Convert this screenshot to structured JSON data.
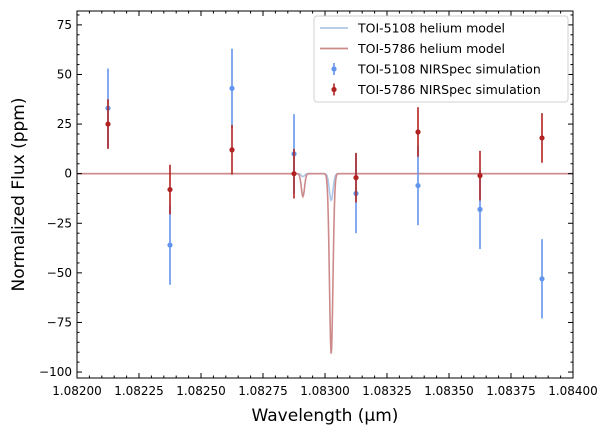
{
  "chart_data": {
    "type": "line",
    "title": "",
    "xlabel": "Wavelength (μm)",
    "ylabel": "Normalized Flux (ppm)",
    "xlim": [
      1.082,
      1.084
    ],
    "ylim": [
      -103,
      82
    ],
    "x_ticks": [
      1.082,
      1.08225,
      1.0825,
      1.08275,
      1.083,
      1.08325,
      1.0835,
      1.08375,
      1.084
    ],
    "x_tick_labels": [
      "1.08200",
      "1.08225",
      "1.08250",
      "1.08275",
      "1.08300",
      "1.08325",
      "1.08350",
      "1.08375",
      "1.08400"
    ],
    "y_ticks": [
      -100,
      -75,
      -50,
      -25,
      0,
      25,
      50,
      75
    ],
    "y_tick_labels": [
      "−100",
      "−75",
      "−50",
      "−25",
      "0",
      "25",
      "50",
      "75"
    ],
    "legend_position": "top-right",
    "models": [
      {
        "name": "TOI-5108 helium model",
        "color": "#aec7e8",
        "dips": [
          {
            "center": 1.082911,
            "depth": 1.5,
            "width": 6.5e-06
          },
          {
            "center": 1.083025,
            "depth": 13.5,
            "width": 7.5e-06
          }
        ]
      },
      {
        "name": "TOI-5786 helium model",
        "color": "#cd8a8a",
        "dips": [
          {
            "center": 1.082911,
            "depth": 11.5,
            "width": 6.5e-06
          },
          {
            "center": 1.083025,
            "depth": 91,
            "width": 7e-06
          }
        ]
      }
    ],
    "series": [
      {
        "name": "TOI-5108 NIRSpec simulation",
        "color": "#6495ed",
        "x": [
          1.082125,
          1.082375,
          1.082625,
          1.082875,
          1.083125,
          1.083375,
          1.083625,
          1.083875
        ],
        "y": [
          33,
          -36,
          43,
          10,
          -10,
          -6,
          -18,
          -53
        ],
        "yerr": [
          20,
          20,
          20,
          20,
          20,
          20,
          20,
          20
        ]
      },
      {
        "name": "TOI-5786 NIRSpec simulation",
        "color": "#b22222",
        "x": [
          1.082125,
          1.082375,
          1.082625,
          1.082875,
          1.083125,
          1.083375,
          1.083625,
          1.083875
        ],
        "y": [
          25,
          -8,
          12,
          0,
          -2,
          21,
          -1,
          18
        ],
        "yerr": [
          12.5,
          12.5,
          12.5,
          12.5,
          12.5,
          12.5,
          12.5,
          12.5
        ]
      }
    ]
  }
}
